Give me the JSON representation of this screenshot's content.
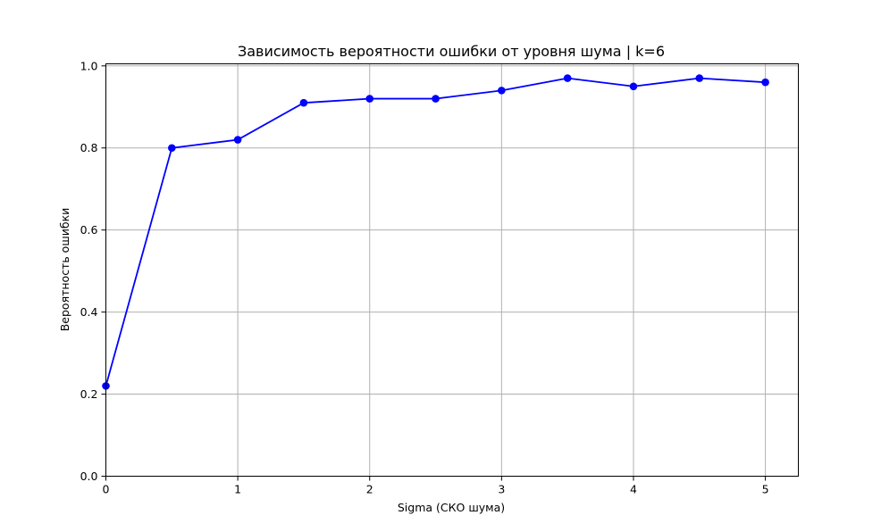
{
  "chart_data": {
    "type": "line",
    "title": "Зависимость вероятности ошибки от уровня шума | k=6",
    "xlabel": "Sigma (СКО шума)",
    "ylabel": "Вероятность ошибки",
    "xlim": [
      0,
      5.25
    ],
    "ylim": [
      0,
      1.005
    ],
    "grid": true,
    "x_ticks": [
      0,
      1,
      2,
      3,
      4,
      5
    ],
    "x_tick_labels": [
      "0",
      "1",
      "2",
      "3",
      "4",
      "5"
    ],
    "y_ticks": [
      0.0,
      0.2,
      0.4,
      0.6,
      0.8,
      1.0
    ],
    "y_tick_labels": [
      "0.0",
      "0.2",
      "0.4",
      "0.6",
      "0.8",
      "1.0"
    ],
    "series": [
      {
        "color": "#0000ff",
        "marker": "circle",
        "x": [
          0,
          0.5,
          1,
          1.5,
          2,
          2.5,
          3,
          3.5,
          4,
          4.5,
          5
        ],
        "values": [
          0.22,
          0.8,
          0.82,
          0.91,
          0.92,
          0.92,
          0.94,
          0.97,
          0.95,
          0.97,
          0.96
        ]
      }
    ]
  }
}
